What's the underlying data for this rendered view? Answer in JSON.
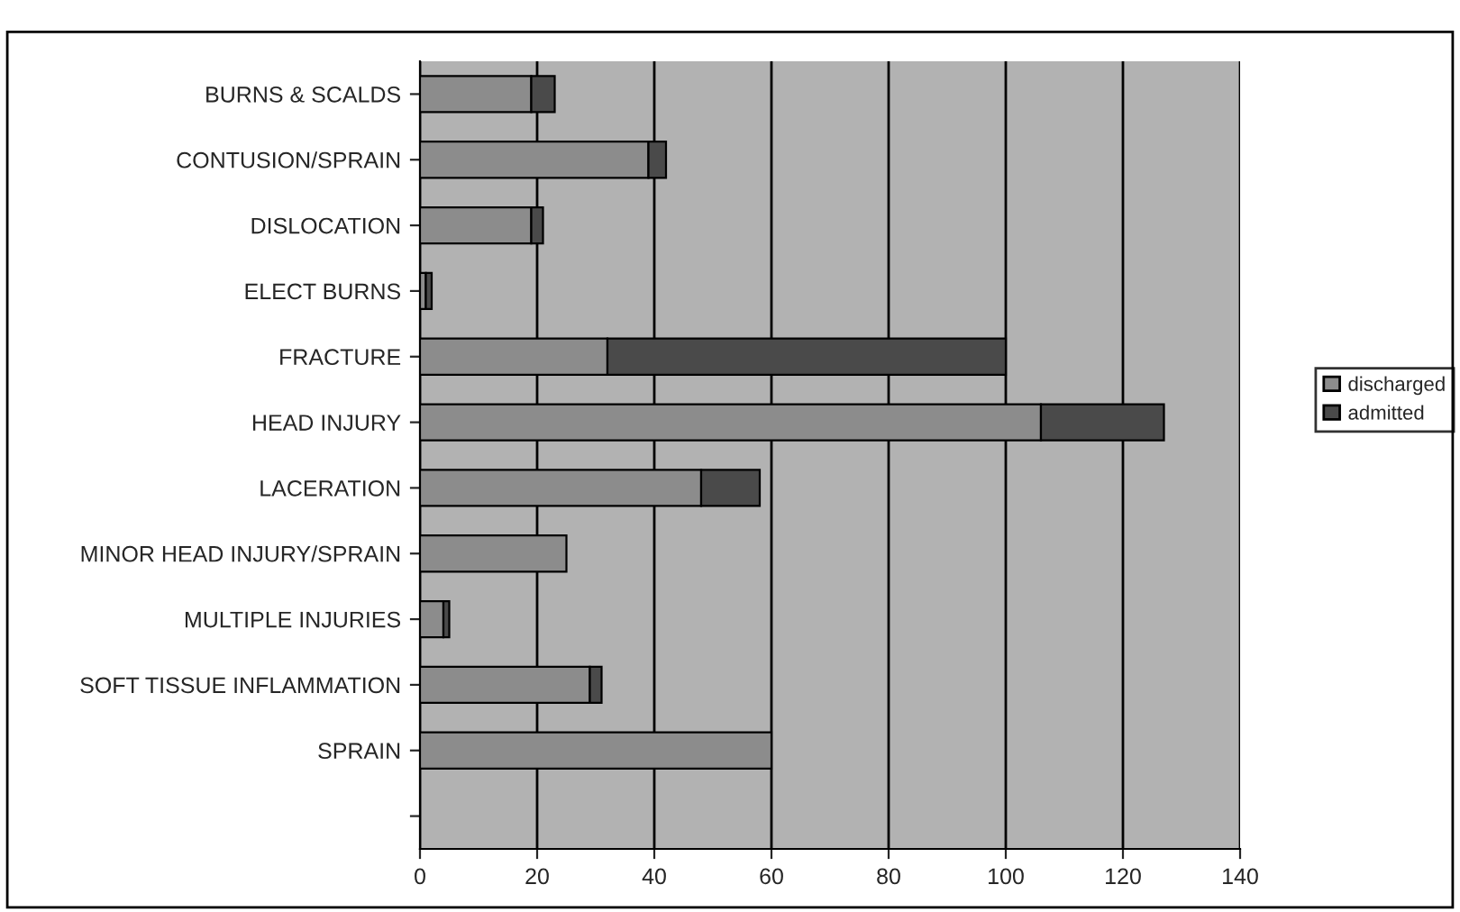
{
  "chart_data": {
    "type": "bar",
    "orientation": "horizontal",
    "stacked": true,
    "categories": [
      "BURNS & SCALDS",
      "CONTUSION/SPRAIN",
      "DISLOCATION",
      "ELECT BURNS",
      "FRACTURE",
      "HEAD INJURY",
      "LACERATION",
      "MINOR HEAD INJURY/SPRAIN",
      "MULTIPLE INJURIES",
      "SOFT TISSUE INFLAMMATION",
      "SPRAIN",
      null
    ],
    "series": [
      {
        "name": "discharged",
        "color": "#8c8c8c",
        "values": [
          19,
          39,
          19,
          1,
          32,
          106,
          48,
          25,
          4,
          29,
          60,
          null
        ]
      },
      {
        "name": "admitted",
        "color": "#4a4a4a",
        "values": [
          4,
          3,
          2,
          1,
          68,
          21,
          10,
          null,
          1,
          2,
          null,
          null
        ]
      }
    ],
    "xlim": [
      0,
      140
    ],
    "xticks": [
      0,
      20,
      40,
      60,
      80,
      100,
      120,
      140
    ],
    "grid": "x",
    "legend": "right"
  }
}
